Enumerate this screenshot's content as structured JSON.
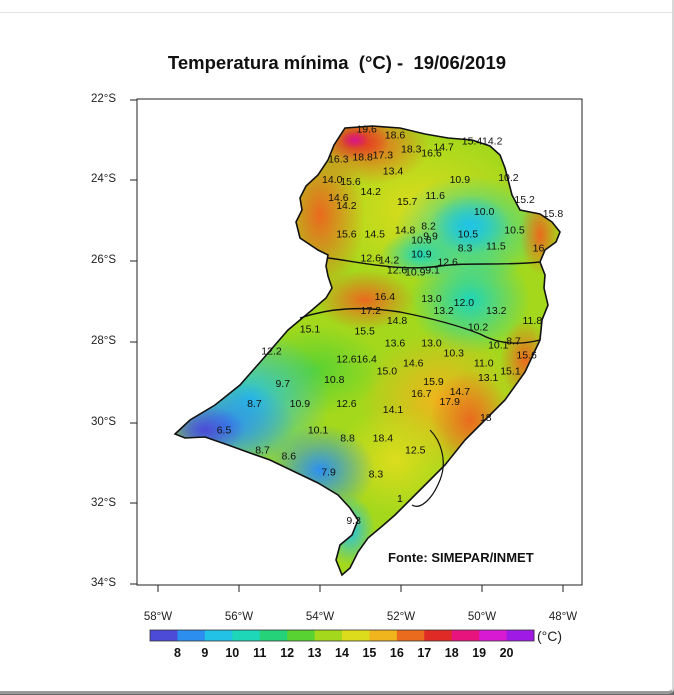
{
  "title": "Temperatura mínima  (°C) -  19/06/2019",
  "credit": "Fonte: SIMEPAR/INMET",
  "lat_labels": [
    "22°S",
    "24°S",
    "26°S",
    "28°S",
    "30°S",
    "32°S",
    "34°S"
  ],
  "lon_labels": [
    "58°W",
    "56°W",
    "54°W",
    "52°W",
    "50°W",
    "48°W"
  ],
  "colorbar": {
    "unit": "(°C)",
    "labels": [
      "8",
      "9",
      "10",
      "11",
      "12",
      "13",
      "14",
      "15",
      "16",
      "17",
      "18",
      "19",
      "20"
    ],
    "colors": [
      "#4b4bd8",
      "#2c8ff0",
      "#22c2e6",
      "#1ed6b8",
      "#25d27a",
      "#58d232",
      "#a3d81c",
      "#dcdc1c",
      "#f0b41c",
      "#ea6a1e",
      "#e02a26",
      "#e8147e",
      "#d81ad2",
      "#a01ae6"
    ]
  },
  "stations": [
    {
      "v": "19.6",
      "lon": -53.1,
      "lat": -22.8
    },
    {
      "v": "18.6",
      "lon": -52.4,
      "lat": -22.95
    },
    {
      "v": "18.3",
      "lon": -52.0,
      "lat": -23.3
    },
    {
      "v": "16.6",
      "lon": -51.5,
      "lat": -23.4
    },
    {
      "v": "14.7",
      "lon": -51.2,
      "lat": -23.25
    },
    {
      "v": "15.4",
      "lon": -50.5,
      "lat": -23.1
    },
    {
      "v": "14.2",
      "lon": -50.0,
      "lat": -23.1
    },
    {
      "v": "16.3",
      "lon": -53.8,
      "lat": -23.55
    },
    {
      "v": "18.8",
      "lon": -53.2,
      "lat": -23.5
    },
    {
      "v": "17.3",
      "lon": -52.7,
      "lat": -23.45
    },
    {
      "v": "13.4",
      "lon": -52.45,
      "lat": -23.85
    },
    {
      "v": "14.0",
      "lon": -53.95,
      "lat": -24.05
    },
    {
      "v": "15.6",
      "lon": -53.5,
      "lat": -24.1
    },
    {
      "v": "10.9",
      "lon": -50.8,
      "lat": -24.05
    },
    {
      "v": "10.2",
      "lon": -49.6,
      "lat": -24.0
    },
    {
      "v": "14.6",
      "lon": -53.8,
      "lat": -24.5
    },
    {
      "v": "14.2",
      "lon": -53.0,
      "lat": -24.35
    },
    {
      "v": "14.2",
      "lon": -53.6,
      "lat": -24.7
    },
    {
      "v": "15.7",
      "lon": -52.1,
      "lat": -24.6
    },
    {
      "v": "11.6",
      "lon": -51.4,
      "lat": -24.45
    },
    {
      "v": "15.2",
      "lon": -49.2,
      "lat": -24.55
    },
    {
      "v": "10.0",
      "lon": -50.2,
      "lat": -24.85
    },
    {
      "v": "15.8",
      "lon": -48.5,
      "lat": -24.9
    },
    {
      "v": "15.6",
      "lon": -53.6,
      "lat": -25.4
    },
    {
      "v": "14.5",
      "lon": -52.9,
      "lat": -25.4
    },
    {
      "v": "14.8",
      "lon": -52.15,
      "lat": -25.3
    },
    {
      "v": "8.2",
      "lon": -51.5,
      "lat": -25.2
    },
    {
      "v": "10.5",
      "lon": -50.6,
      "lat": -25.4
    },
    {
      "v": "10.5",
      "lon": -49.45,
      "lat": -25.3
    },
    {
      "v": "10.6",
      "lon": -51.75,
      "lat": -25.55
    },
    {
      "v": "9.9",
      "lon": -51.45,
      "lat": -25.45
    },
    {
      "v": "8.3",
      "lon": -50.6,
      "lat": -25.75
    },
    {
      "v": "11.5",
      "lon": -49.9,
      "lat": -25.7
    },
    {
      "v": "16",
      "lon": -48.75,
      "lat": -25.75
    },
    {
      "v": "10.9",
      "lon": -51.75,
      "lat": -25.9
    },
    {
      "v": "12.6",
      "lon": -53.0,
      "lat": -26.0
    },
    {
      "v": "14.2",
      "lon": -52.55,
      "lat": -26.05
    },
    {
      "v": "12.6",
      "lon": -51.1,
      "lat": -26.1
    },
    {
      "v": "12.6",
      "lon": -52.35,
      "lat": -26.3
    },
    {
      "v": "10.9",
      "lon": -51.9,
      "lat": -26.35
    },
    {
      "v": "9.1",
      "lon": -51.4,
      "lat": -26.3
    },
    {
      "v": "16.4",
      "lon": -52.65,
      "lat": -26.95
    },
    {
      "v": "13.0",
      "lon": -51.5,
      "lat": -27.0
    },
    {
      "v": "12.0",
      "lon": -50.7,
      "lat": -27.1
    },
    {
      "v": "17.2",
      "lon": -53.0,
      "lat": -27.3
    },
    {
      "v": "13.2",
      "lon": -51.2,
      "lat": -27.3
    },
    {
      "v": "13.2",
      "lon": -49.9,
      "lat": -27.3
    },
    {
      "v": "14.8",
      "lon": -52.35,
      "lat": -27.55
    },
    {
      "v": "11.8",
      "lon": -49.0,
      "lat": -27.55
    },
    {
      "v": "15.1",
      "lon": -54.5,
      "lat": -27.75
    },
    {
      "v": "15.5",
      "lon": -53.15,
      "lat": -27.8
    },
    {
      "v": "10.2",
      "lon": -50.35,
      "lat": -27.7
    },
    {
      "v": "13.6",
      "lon": -52.4,
      "lat": -28.1
    },
    {
      "v": "13.0",
      "lon": -51.5,
      "lat": -28.1
    },
    {
      "v": "10.1",
      "lon": -49.85,
      "lat": -28.15
    },
    {
      "v": "8.7",
      "lon": -49.4,
      "lat": -28.05
    },
    {
      "v": "12.2",
      "lon": -55.45,
      "lat": -28.3
    },
    {
      "v": "10.3",
      "lon": -50.95,
      "lat": -28.35
    },
    {
      "v": "15.6",
      "lon": -49.15,
      "lat": -28.4
    },
    {
      "v": "12.6",
      "lon": -53.6,
      "lat": -28.5
    },
    {
      "v": "16.4",
      "lon": -53.1,
      "lat": -28.5
    },
    {
      "v": "14.6",
      "lon": -51.95,
      "lat": -28.6
    },
    {
      "v": "11.0",
      "lon": -50.2,
      "lat": -28.6
    },
    {
      "v": "15.0",
      "lon": -52.6,
      "lat": -28.8
    },
    {
      "v": "15.1",
      "lon": -49.55,
      "lat": -28.8
    },
    {
      "v": "13.1",
      "lon": -50.1,
      "lat": -28.95
    },
    {
      "v": "10.8",
      "lon": -53.9,
      "lat": -29.0
    },
    {
      "v": "9.7",
      "lon": -55.1,
      "lat": -29.1
    },
    {
      "v": "15.9",
      "lon": -51.45,
      "lat": -29.05
    },
    {
      "v": "16.7",
      "lon": -51.75,
      "lat": -29.35
    },
    {
      "v": "14.7",
      "lon": -50.8,
      "lat": -29.3
    },
    {
      "v": "8.7",
      "lon": -55.8,
      "lat": -29.6
    },
    {
      "v": "10.9",
      "lon": -54.75,
      "lat": -29.6
    },
    {
      "v": "12.6",
      "lon": -53.6,
      "lat": -29.6
    },
    {
      "v": "17.9",
      "lon": -51.05,
      "lat": -29.55
    },
    {
      "v": "14.1",
      "lon": -52.45,
      "lat": -29.75
    },
    {
      "v": "18",
      "lon": -50.05,
      "lat": -29.95
    },
    {
      "v": "6.5",
      "lon": -56.55,
      "lat": -30.25
    },
    {
      "v": "10.1",
      "lon": -54.3,
      "lat": -30.25
    },
    {
      "v": "8.8",
      "lon": -53.5,
      "lat": -30.45
    },
    {
      "v": "18.4",
      "lon": -52.7,
      "lat": -30.45
    },
    {
      "v": "12.5",
      "lon": -51.9,
      "lat": -30.75
    },
    {
      "v": "8.7",
      "lon": -55.6,
      "lat": -30.75
    },
    {
      "v": "8.6",
      "lon": -54.95,
      "lat": -30.9
    },
    {
      "v": "7.9",
      "lon": -53.97,
      "lat": -31.3
    },
    {
      "v": "8.3",
      "lon": -52.8,
      "lat": -31.35
    },
    {
      "v": "1",
      "lon": -52.1,
      "lat": -31.95
    },
    {
      "v": "9.3",
      "lon": -53.35,
      "lat": -32.5
    }
  ]
}
